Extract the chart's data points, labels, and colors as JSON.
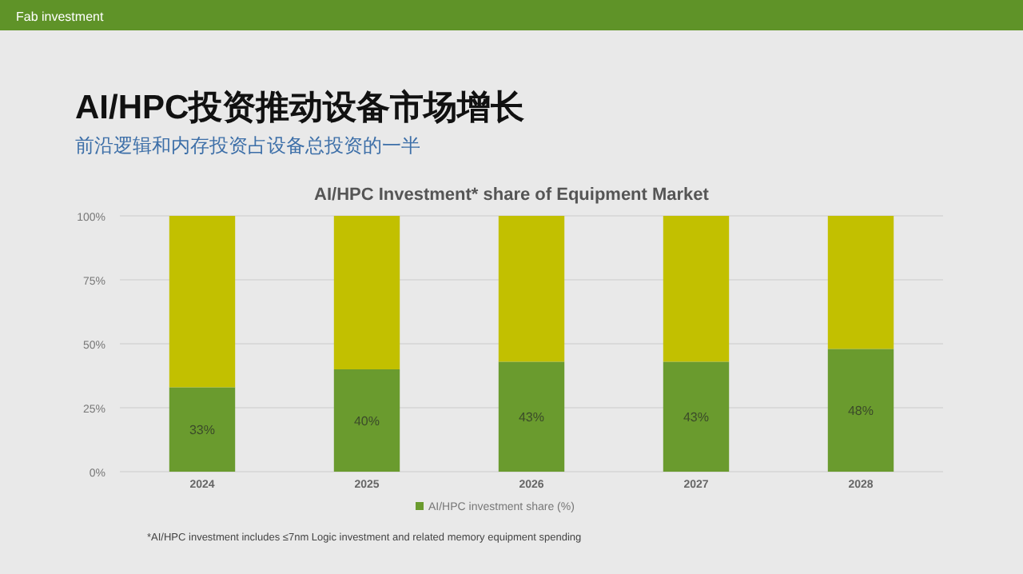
{
  "chart_data": {
    "type": "bar",
    "stacked": true,
    "title": "AI/HPC投资推动设备市场增长",
    "subtitle": "前沿逻辑和内存投资占设备总投资的一半",
    "annotations": [
      "Fab investment",
      "AI/HPC Investment* share of Equipment Market",
      "*AI/HPC investment includes ≤7nm Logic investment and related memory equipment spending"
    ],
    "categories": [
      "2024",
      "2025",
      "2026",
      "2027",
      "2028"
    ],
    "series": [
      {
        "name": "AI/HPC investment share (%)",
        "color": "#6a9b2e",
        "values": [
          33,
          40,
          43,
          43,
          48
        ],
        "value_labels": [
          "33%",
          "40%",
          "43%",
          "43%",
          "48%"
        ]
      },
      {
        "color": "#c2c000",
        "values": [
          67,
          60,
          57,
          57,
          52
        ]
      }
    ],
    "ylim": [
      0,
      100
    ],
    "yticks": [
      {
        "value": 0,
        "label": "0%"
      },
      {
        "value": 25,
        "label": "25%"
      },
      {
        "value": 50,
        "label": "50%"
      },
      {
        "value": 75,
        "label": "75%"
      },
      {
        "value": 100,
        "label": "100%"
      }
    ],
    "grid": "y",
    "legend": "bottom"
  }
}
